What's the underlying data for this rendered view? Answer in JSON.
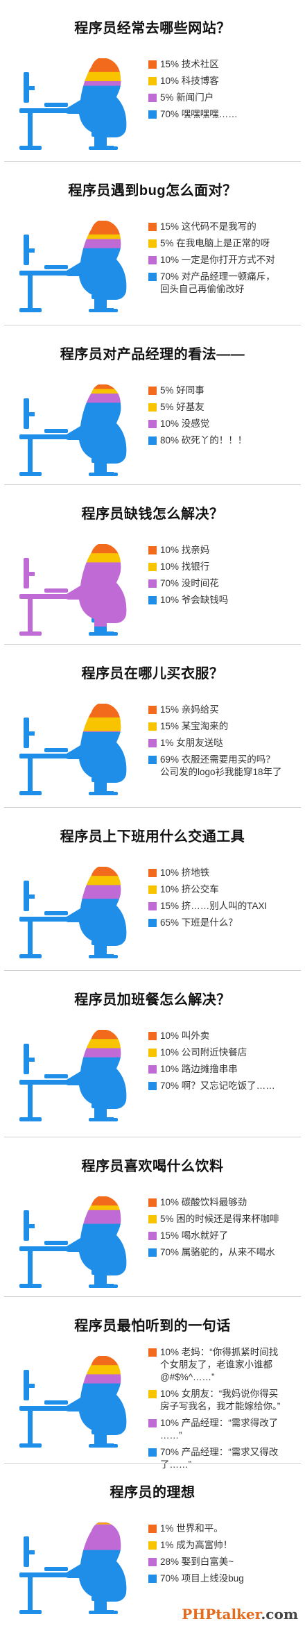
{
  "colors": {
    "orange": "#f26b1d",
    "yellow": "#f8c400",
    "purple": "#c06ad6",
    "blue": "#1e8ee8",
    "title": "#111111"
  },
  "watermark": {
    "text": "PHPtalker",
    "dot_com": ".com"
  },
  "chart_data": [
    {
      "type": "pie",
      "title": "程序员经常去哪些网站？",
      "legend": [
        "15% 技术社区",
        "10% 科技博客",
        "5% 新闻门户",
        "70% 嘿嘿嘿嘿……"
      ],
      "values": [
        15,
        10,
        5,
        70
      ],
      "colors": [
        "#f26b1d",
        "#f8c400",
        "#c06ad6",
        "#1e8ee8"
      ]
    },
    {
      "type": "pie",
      "title": "程序员遇到bug怎么面对？",
      "legend": [
        "15% 这代码不是我写的",
        "5% 在我电脑上是正常的呀",
        "10% 一定是你打开方式不对",
        "70% 对产品经理一顿痛斥，\n回头自己再偷偷改好"
      ],
      "values": [
        15,
        5,
        10,
        70
      ],
      "colors": [
        "#f26b1d",
        "#f8c400",
        "#c06ad6",
        "#1e8ee8"
      ]
    },
    {
      "type": "pie",
      "title": "程序员对产品经理的看法——",
      "legend": [
        "5% 好同事",
        "5% 好基友",
        "10% 没感觉",
        "80% 砍死丫的！！！"
      ],
      "values": [
        5,
        5,
        10,
        80
      ],
      "colors": [
        "#f26b1d",
        "#f8c400",
        "#c06ad6",
        "#1e8ee8"
      ]
    },
    {
      "type": "pie",
      "title": "程序员缺钱怎么解决？",
      "legend": [
        "10% 找亲妈",
        "10% 找银行",
        "70% 没时间花",
        "10% 爷会缺钱吗"
      ],
      "values": [
        10,
        10,
        70,
        10
      ],
      "colors": [
        "#f26b1d",
        "#f8c400",
        "#c06ad6",
        "#1e8ee8"
      ]
    },
    {
      "type": "pie",
      "title": "程序员在哪儿买衣服？",
      "legend": [
        "15% 亲妈给买",
        "15% 某宝淘来的",
        "1% 女朋友送哒",
        "69% 衣服还需要用买的吗？\n公司发的logo衫我能穿18年了"
      ],
      "values": [
        15,
        15,
        1,
        69
      ],
      "colors": [
        "#f26b1d",
        "#f8c400",
        "#c06ad6",
        "#1e8ee8"
      ]
    },
    {
      "type": "pie",
      "title": "程序员上下班用什么交通工具",
      "legend": [
        "10% 挤地铁",
        "10% 挤公交车",
        "15% 挤……别人叫的TAXI",
        "65% 下班是什么？"
      ],
      "values": [
        10,
        10,
        15,
        65
      ],
      "colors": [
        "#f26b1d",
        "#f8c400",
        "#c06ad6",
        "#1e8ee8"
      ]
    },
    {
      "type": "pie",
      "title": "程序员加班餐怎么解决？",
      "legend": [
        "10% 叫外卖",
        "10% 公司附近快餐店",
        "10% 路边摊撸串串",
        "70% 啊？又忘记吃饭了……"
      ],
      "values": [
        10,
        10,
        10,
        70
      ],
      "colors": [
        "#f26b1d",
        "#f8c400",
        "#c06ad6",
        "#1e8ee8"
      ]
    },
    {
      "type": "pie",
      "title": "程序员喜欢喝什么饮料",
      "legend": [
        "10% 碳酸饮料最够劲",
        "5% 困的时候还是得来杯咖啡",
        "15% 喝水就好了",
        "70% 属骆驼的，从来不喝水"
      ],
      "values": [
        10,
        5,
        15,
        70
      ],
      "colors": [
        "#f26b1d",
        "#f8c400",
        "#c06ad6",
        "#1e8ee8"
      ]
    },
    {
      "type": "pie",
      "title": "程序员最怕听到的一句话",
      "legend": [
        "10% 老妈：“你得抓紧时间找\n个女朋友了，老谁家小谁都\n@#$%^……”",
        "10% 女朋友：“我妈说你得买\n房子写我名，我才能嫁给你。”",
        "10% 产品经理：“需求得改了\n……”",
        "70% 产品经理：“需求又得改\n了……”"
      ],
      "values": [
        10,
        10,
        10,
        70
      ],
      "colors": [
        "#f26b1d",
        "#f8c400",
        "#c06ad6",
        "#1e8ee8"
      ]
    },
    {
      "type": "pie",
      "title": "程序员的理想",
      "legend": [
        "1% 世界和平。",
        "1% 成为高富帅！",
        "28% 娶到白富美~",
        "70% 项目上线没bug"
      ],
      "values": [
        1,
        1,
        28,
        70
      ],
      "colors": [
        "#f26b1d",
        "#f8c400",
        "#c06ad6",
        "#1e8ee8"
      ]
    }
  ]
}
